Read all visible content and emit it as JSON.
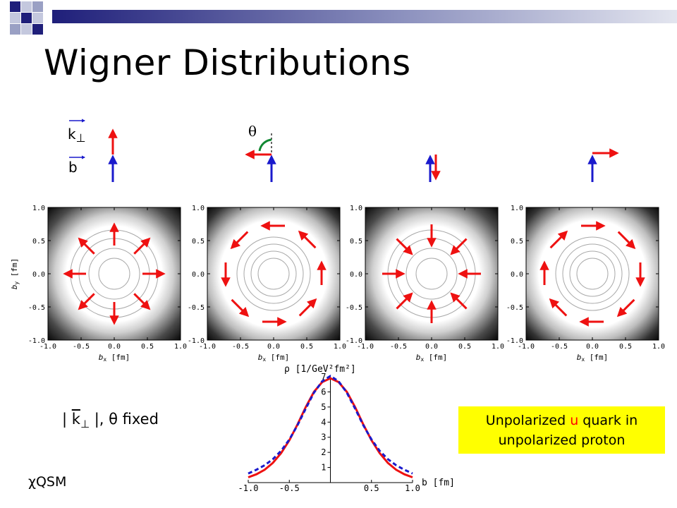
{
  "slide": {
    "title": "Wigner Distributions",
    "vector_labels": {
      "k": "k",
      "k_subscript": "⊥",
      "b": "b",
      "theta": "θ"
    },
    "fixed_label": {
      "k": "k",
      "sub": "⊥",
      "rest": ", θ fixed",
      "bar": "|"
    },
    "model_label": "χQSM",
    "callout": {
      "line1_pre": "Unpolarized ",
      "line1_quark": "u",
      "line1_post": " quark in",
      "line2": "unpolarized proton"
    },
    "colors": {
      "header_bar_gradient": [
        "#1f1f7a",
        "#d8dbe8"
      ],
      "header_squares": [
        "#1f1f7a",
        "#9aa0c4",
        "#c4c8de"
      ],
      "arrow_red": "#ee1111",
      "arrow_blue": "#1a1acc",
      "callout_bg": "#ffff00",
      "density_dark": "#000000",
      "density_light": "#ffffff"
    },
    "panel_axis": {
      "x_ticks": [
        "-1.0",
        "-0.5",
        "0.0",
        "0.5",
        "1.0"
      ],
      "y_ticks": [
        "1.0",
        "0.5",
        "0.0",
        "-0.5",
        "-1.0"
      ],
      "x_label": "b",
      "x_label_sub": "x",
      "y_label": "b",
      "y_label_sub": "y",
      "unit": "[fm]"
    },
    "panels": [
      {
        "orientation": "k parallel b",
        "arrow_pattern": "radial-out"
      },
      {
        "orientation": "k rotated 90° from b",
        "arrow_pattern": "tangential-ccw"
      },
      {
        "orientation": "k antiparallel b",
        "arrow_pattern": "radial-in"
      },
      {
        "orientation": "k rotated -90° from b",
        "arrow_pattern": "tangential-cw"
      }
    ]
  },
  "chart_data": {
    "type": "line",
    "title": "",
    "ylabel": "ρ [1/GeV²fm²]",
    "xlabel": "b [fm]",
    "xlim": [
      -1.0,
      1.0
    ],
    "ylim": [
      0,
      7
    ],
    "x_ticks": [
      "-1.0",
      "-0.5",
      "0.5",
      "1.0"
    ],
    "y_ticks": [
      "1",
      "2",
      "3",
      "4",
      "5",
      "6",
      "7"
    ],
    "x": [
      -1.0,
      -0.9,
      -0.8,
      -0.7,
      -0.6,
      -0.5,
      -0.4,
      -0.3,
      -0.2,
      -0.1,
      0.0,
      0.1,
      0.2,
      0.3,
      0.4,
      0.5,
      0.6,
      0.7,
      0.8,
      0.9,
      1.0
    ],
    "series": [
      {
        "color": "#ee1111",
        "dash": "solid",
        "values": [
          0.35,
          0.55,
          0.85,
          1.3,
          1.95,
          2.8,
          3.85,
          5.0,
          6.0,
          6.65,
          6.9,
          6.65,
          6.0,
          5.0,
          3.85,
          2.8,
          1.95,
          1.3,
          0.85,
          0.55,
          0.35
        ]
      },
      {
        "color": "#1a1acc",
        "dash": "dashed",
        "values": [
          0.6,
          0.85,
          1.15,
          1.55,
          2.1,
          2.85,
          3.8,
          4.9,
          5.95,
          6.7,
          7.05,
          6.7,
          5.95,
          4.9,
          3.8,
          2.85,
          2.1,
          1.55,
          1.15,
          0.85,
          0.6
        ]
      }
    ]
  }
}
